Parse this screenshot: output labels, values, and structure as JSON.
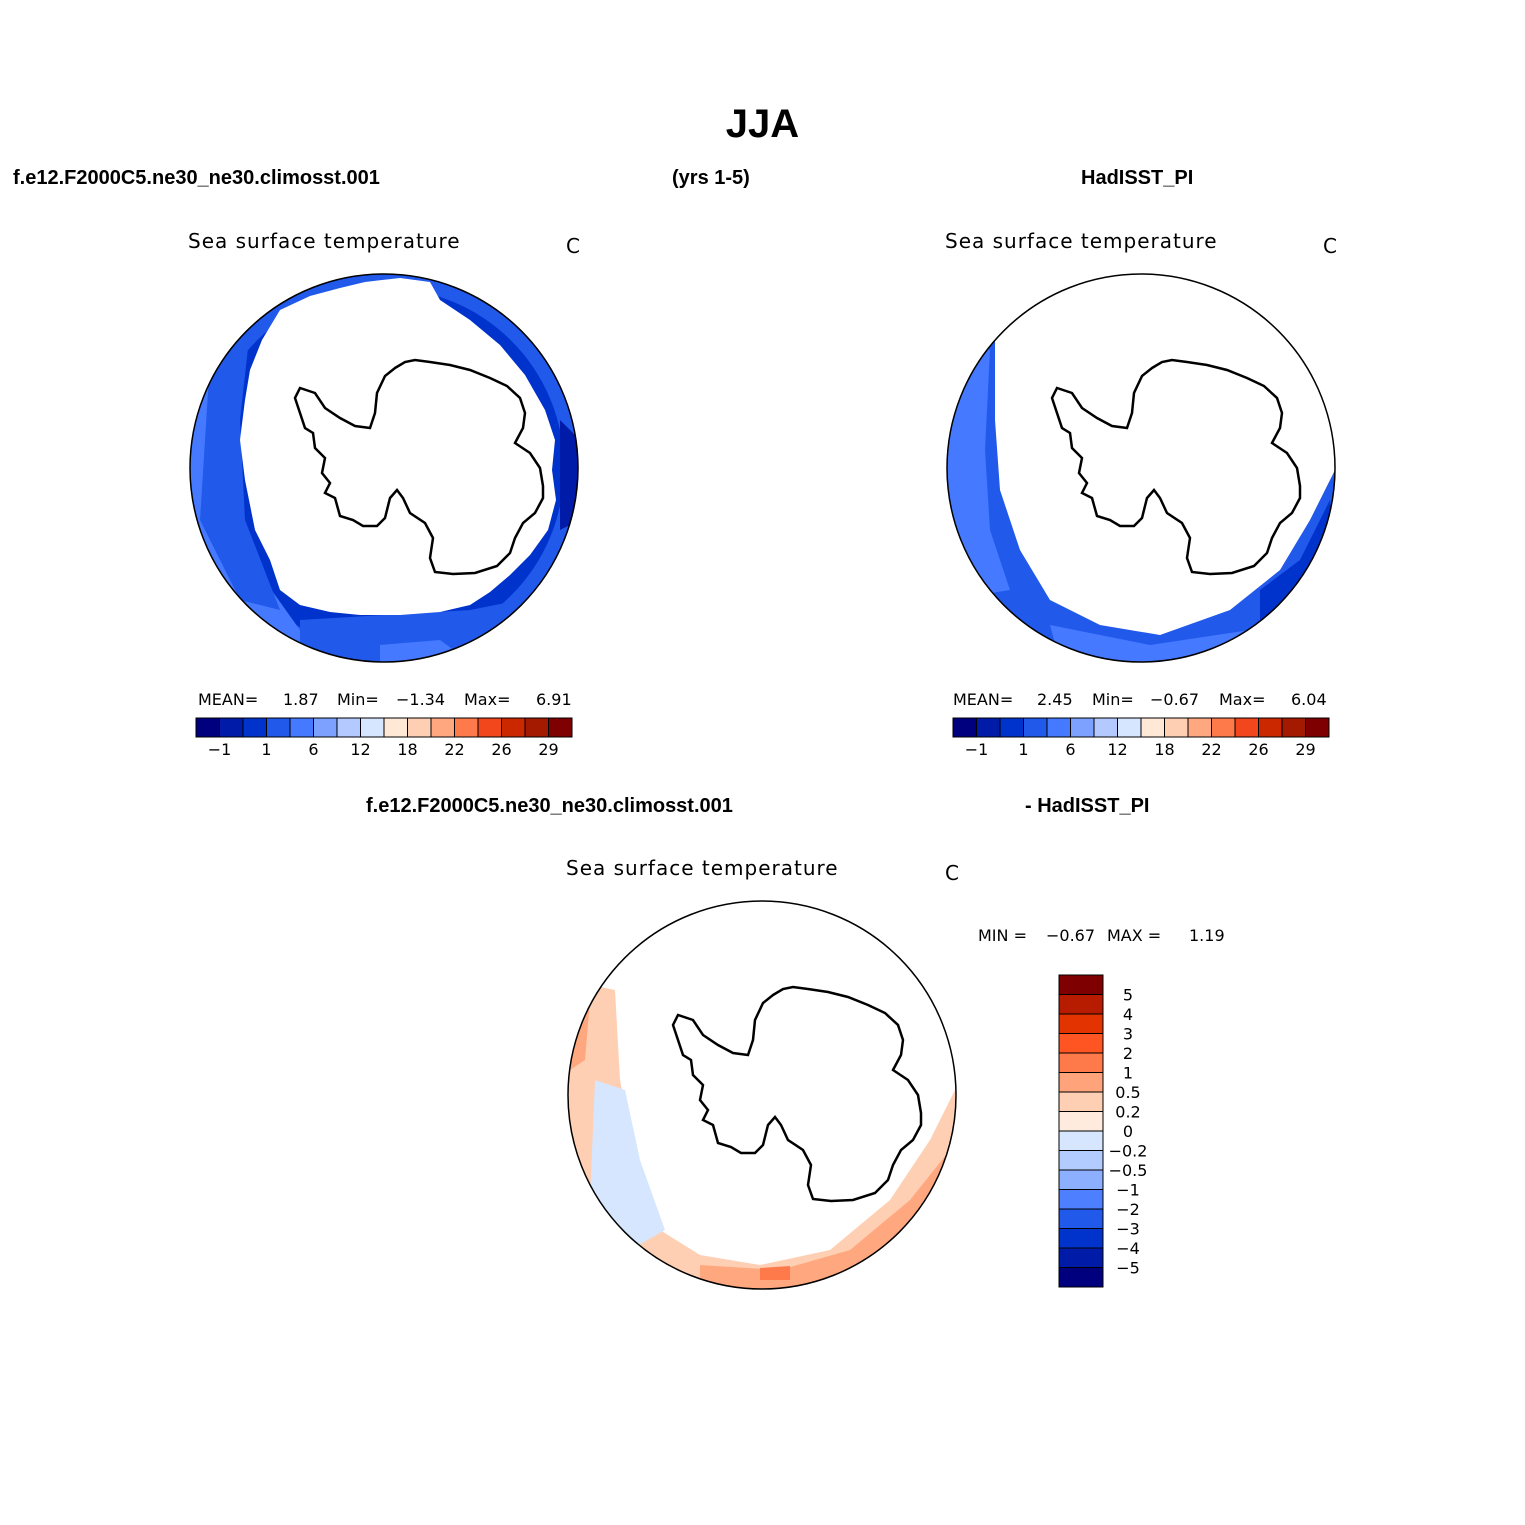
{
  "header": {
    "title": "JJA",
    "case_name": "f.e12.F2000C5.ne30_ne30.climosst.001",
    "years": "(yrs 1-5)",
    "obs_name": "HadISST_PI",
    "diff_case_name": "f.e12.F2000C5.ne30_ne30.climosst.001",
    "diff_obs_name": "- HadISST_PI"
  },
  "panels": {
    "model": {
      "title": "Sea surface temperature",
      "units": "C",
      "stats": {
        "mean_label": "MEAN=",
        "mean": "1.87",
        "min_label": "Min=",
        "min": "−1.34",
        "max_label": "Max=",
        "max": "6.91"
      }
    },
    "obs": {
      "title": "Sea surface temperature",
      "units": "C",
      "stats": {
        "mean_label": "MEAN=",
        "mean": "2.45",
        "min_label": "Min=",
        "min": "−0.67",
        "max_label": "Max=",
        "max": "6.04"
      }
    },
    "diff": {
      "title": "Sea surface temperature",
      "units": "C",
      "stats": {
        "min_label": "MIN =",
        "min": "−0.67",
        "max_label": "MAX =",
        "max": "1.19"
      }
    }
  },
  "colorbar_abs": {
    "colors": [
      "#00007f",
      "#001ba8",
      "#0033cc",
      "#2159eb",
      "#4579ff",
      "#7da1ff",
      "#b3c9ff",
      "#d6e6ff",
      "#ffe9d6",
      "#ffcfb3",
      "#ffa87f",
      "#ff7a4a",
      "#f2461c",
      "#cc2800",
      "#a31a00",
      "#7f0000"
    ],
    "tick_labels": [
      "−1",
      "1",
      "6",
      "12",
      "18",
      "22",
      "26",
      "29"
    ]
  },
  "colorbar_diff": {
    "colors": [
      "#7f0000",
      "#b81c00",
      "#e23300",
      "#ff5522",
      "#ff7a4a",
      "#ffa47a",
      "#ffcfb3",
      "#ffebdd",
      "#d6e6ff",
      "#b3ccff",
      "#8cb0ff",
      "#4d7fff",
      "#2159eb",
      "#0033cc",
      "#001ba8",
      "#00007f"
    ],
    "tick_labels": [
      "5",
      "4",
      "3",
      "2",
      "1",
      "0.5",
      "0.2",
      "0",
      "−0.2",
      "−0.5",
      "−1",
      "−2",
      "−3",
      "−4",
      "−5"
    ]
  }
}
